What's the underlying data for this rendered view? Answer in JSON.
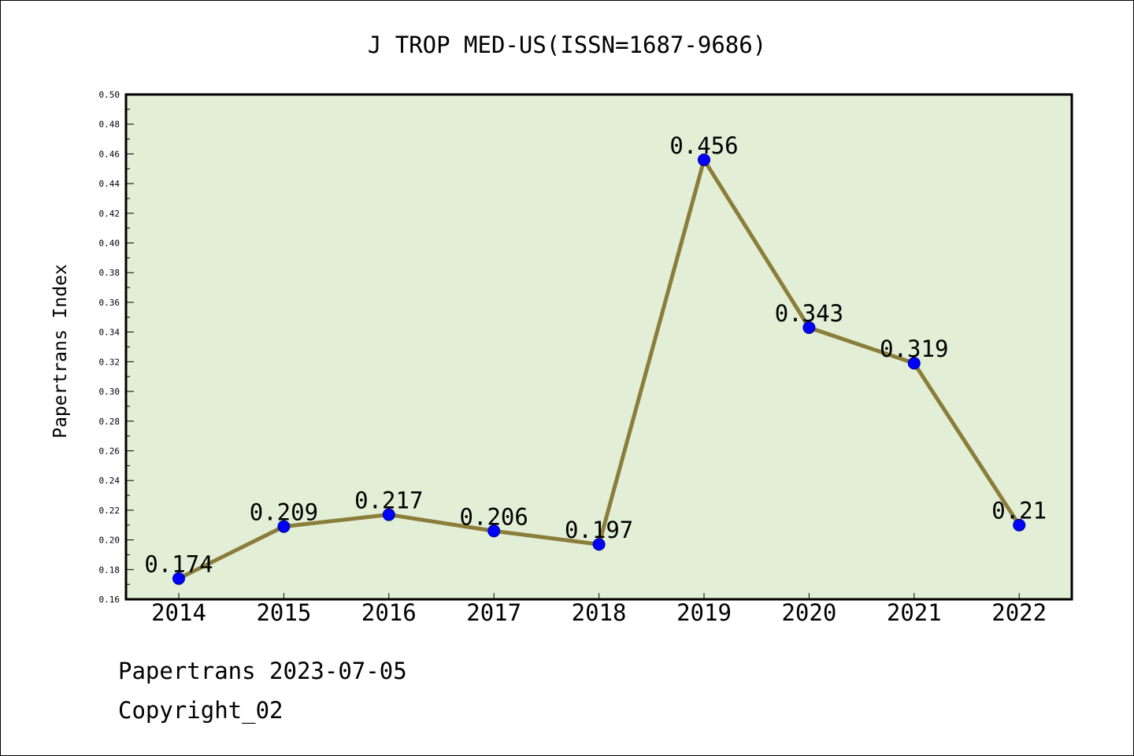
{
  "chart_data": {
    "type": "line",
    "title": "J TROP MED-US(ISSN=1687-9686)",
    "xlabel": "",
    "ylabel": "Papertrans Index",
    "categories": [
      "2014",
      "2015",
      "2016",
      "2017",
      "2018",
      "2019",
      "2020",
      "2021",
      "2022"
    ],
    "values": [
      0.174,
      0.209,
      0.217,
      0.206,
      0.197,
      0.456,
      0.343,
      0.319,
      0.21
    ],
    "data_labels": [
      "0.174",
      "0.209",
      "0.217",
      "0.206",
      "0.197",
      "0.456",
      "0.343",
      "0.319",
      "0.21"
    ],
    "ylim": [
      0.16,
      0.5
    ],
    "yticks": [
      "0.16",
      "0.18",
      "0.20",
      "0.22",
      "0.24",
      "0.26",
      "0.28",
      "0.30",
      "0.32",
      "0.34",
      "0.36",
      "0.38",
      "0.40",
      "0.42",
      "0.44",
      "0.46",
      "0.48",
      "0.50"
    ],
    "grid": false,
    "colors": {
      "plot_background": "#e2efd6",
      "line": "#8b7d3a",
      "marker": "#0000ff"
    }
  },
  "footer": {
    "line1": "Papertrans 2023-07-05",
    "line2": "Copyright_02"
  }
}
